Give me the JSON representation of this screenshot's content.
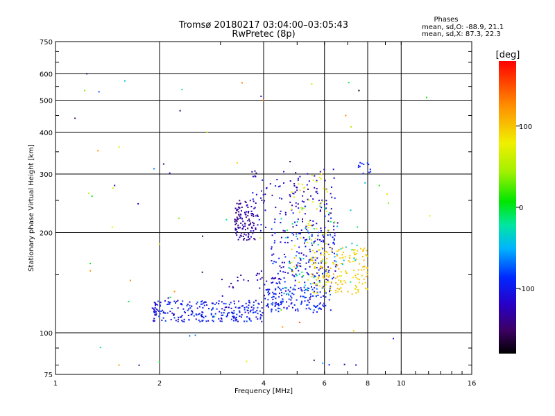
{
  "chart_data": {
    "type": "scatter",
    "title": "Tromsø 20180217 03:04:00–03:05:43",
    "subtitle": "RwPretec (8p)",
    "xlabel": "Frequency [MHz]",
    "ylabel": "Stationary phase Virtual Height [km]",
    "x_scale": "log",
    "y_scale": "log",
    "xlim": [
      1,
      16
    ],
    "ylim": [
      75,
      750
    ],
    "x_ticks": [
      {
        "value": 1,
        "label": "1"
      },
      {
        "value": 2,
        "label": "2"
      },
      {
        "value": 4,
        "label": "4"
      },
      {
        "value": 6,
        "label": "6"
      },
      {
        "value": 8,
        "label": "8"
      },
      {
        "value": 10,
        "label": "10"
      },
      {
        "value": 16,
        "label": "16"
      }
    ],
    "y_ticks": [
      {
        "value": 75,
        "label": "75"
      },
      {
        "value": 100,
        "label": "100"
      },
      {
        "value": 200,
        "label": "200"
      },
      {
        "value": 300,
        "label": "300"
      },
      {
        "value": 400,
        "label": "400"
      },
      {
        "value": 500,
        "label": "500"
      },
      {
        "value": 600,
        "label": "600"
      },
      {
        "value": 750,
        "label": "750"
      }
    ],
    "grid_x": [
      2,
      4,
      6,
      8,
      10
    ],
    "grid_y": [
      100,
      200,
      300,
      400,
      500,
      600
    ],
    "grid": true,
    "colorbar": {
      "label": "[deg]",
      "range": [
        -180,
        180
      ],
      "ticks": [
        {
          "value": 100,
          "label": "100"
        },
        {
          "value": 0,
          "label": "0"
        },
        {
          "value": -100,
          "label": "-100"
        }
      ]
    },
    "stats": {
      "header": "Phases",
      "line_o": "mean, sd,O: -88.9, 21.1",
      "line_x": "mean, sd,X:  87.3, 22.3"
    },
    "clusters": [
      {
        "x0": 1.9,
        "x1": 4.0,
        "y0": 108,
        "y1": 125,
        "n": 260,
        "phase": [
          -125,
          -75
        ]
      },
      {
        "x0": 4.0,
        "x1": 6.3,
        "y0": 115,
        "y1": 140,
        "n": 170,
        "phase": [
          -120,
          -70
        ]
      },
      {
        "x0": 4.2,
        "x1": 6.5,
        "y0": 140,
        "y1": 200,
        "n": 160,
        "phase": [
          -130,
          -80
        ]
      },
      {
        "x0": 3.3,
        "x1": 3.8,
        "y0": 190,
        "y1": 250,
        "n": 120,
        "phase": [
          -150,
          -115
        ]
      },
      {
        "x0": 3.7,
        "x1": 6.5,
        "y0": 200,
        "y1": 310,
        "n": 140,
        "phase": [
          -140,
          -95
        ]
      },
      {
        "x0": 5.5,
        "x1": 8.0,
        "y0": 130,
        "y1": 180,
        "n": 160,
        "phase": [
          80,
          110
        ]
      },
      {
        "x0": 4.8,
        "x1": 6.2,
        "y0": 140,
        "y1": 300,
        "n": 70,
        "phase": [
          60,
          100
        ]
      },
      {
        "x0": 4.5,
        "x1": 7.5,
        "y0": 130,
        "y1": 240,
        "n": 60,
        "phase": [
          -60,
          0
        ]
      },
      {
        "x0": 3.0,
        "x1": 4.5,
        "y0": 135,
        "y1": 160,
        "n": 25,
        "phase": [
          -140,
          -110
        ]
      },
      {
        "x0": 7.5,
        "x1": 8.2,
        "y0": 300,
        "y1": 330,
        "n": 12,
        "phase": [
          -100,
          -80
        ]
      },
      {
        "x0": 1.05,
        "x1": 12.5,
        "y0": 78,
        "y1": 620,
        "n": 70,
        "phase": [
          -170,
          150
        ]
      }
    ]
  }
}
